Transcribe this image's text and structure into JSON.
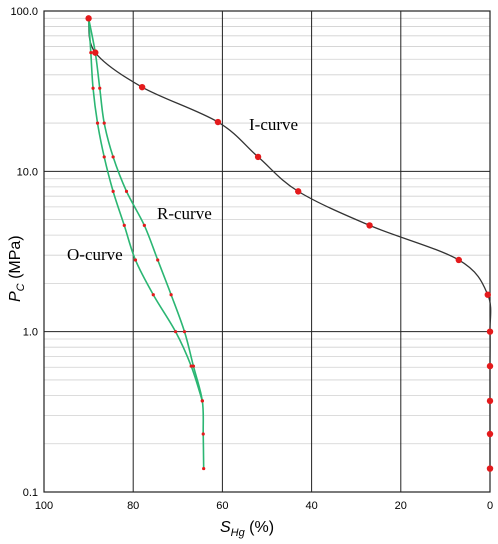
{
  "chart_data": {
    "type": "line",
    "title": "",
    "xlabel": {
      "main": "S",
      "sub": "Hg",
      "unit": " (%)"
    },
    "ylabel": {
      "main": "P",
      "sub": "C",
      "unit": " (MPa)"
    },
    "xlim": [
      100,
      0
    ],
    "ylim": [
      0.1,
      100
    ],
    "y_scale": "log",
    "x_ticks": [
      "100",
      "80",
      "60",
      "40",
      "20",
      "0"
    ],
    "y_ticks": [
      "100.0",
      "10.0",
      "1.0",
      "0.1"
    ],
    "grid": true,
    "series": [
      {
        "name": "I-curve",
        "color": "#333333",
        "marker_color": "#e41a1c",
        "points": [
          [
            0,
            0.14
          ],
          [
            0,
            0.23
          ],
          [
            0,
            0.37
          ],
          [
            0,
            0.61
          ],
          [
            0,
            1.0
          ],
          [
            0.5,
            1.7
          ],
          [
            7,
            2.8
          ],
          [
            27,
            4.6
          ],
          [
            43,
            7.5
          ],
          [
            52,
            12.3
          ],
          [
            61,
            20.3
          ],
          [
            78,
            33.5
          ],
          [
            88.5,
            55
          ],
          [
            90,
            90
          ]
        ]
      },
      {
        "name": "R-curve",
        "color": "#2bb673",
        "marker_color": "#e41a1c",
        "points": [
          [
            90,
            90
          ],
          [
            88.5,
            55
          ],
          [
            87.5,
            33
          ],
          [
            86.5,
            20
          ],
          [
            84.5,
            12.3
          ],
          [
            81.5,
            7.5
          ],
          [
            77.5,
            4.6
          ],
          [
            74.5,
            2.8
          ],
          [
            71.5,
            1.7
          ],
          [
            68.5,
            1.0
          ],
          [
            66.5,
            0.61
          ],
          [
            64.5,
            0.37
          ],
          [
            64.3,
            0.23
          ],
          [
            64.2,
            0.14
          ]
        ]
      },
      {
        "name": "O-curve",
        "color": "#2bb673",
        "marker_color": "#e41a1c",
        "points": [
          [
            90,
            90
          ],
          [
            89.5,
            55
          ],
          [
            89,
            33
          ],
          [
            88,
            20
          ],
          [
            86.5,
            12.3
          ],
          [
            84.5,
            7.5
          ],
          [
            82,
            4.6
          ],
          [
            79.5,
            2.8
          ],
          [
            75.5,
            1.7
          ],
          [
            70.5,
            1.0
          ],
          [
            67,
            0.61
          ],
          [
            64.5,
            0.37
          ]
        ]
      }
    ],
    "annotations": [
      "I-curve",
      "R-curve",
      "O-curve"
    ]
  }
}
